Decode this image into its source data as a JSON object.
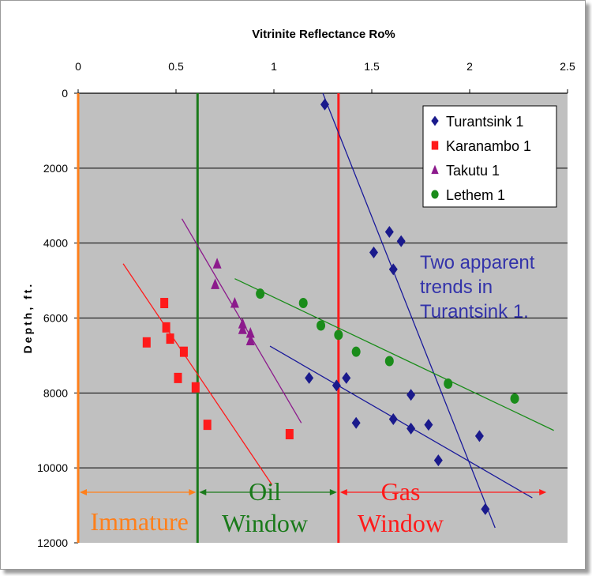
{
  "chart_data": {
    "type": "scatter",
    "title": "Vitrinite Reflectance Ro%",
    "xlabel": "Vitrinite Reflectance Ro%",
    "ylabel": "Depth, ft.",
    "x_axis_position": "top",
    "y_axis_inverted": true,
    "xlim": [
      0,
      2.5
    ],
    "ylim": [
      0,
      12000
    ],
    "x_ticks": [
      0,
      0.5,
      1,
      1.5,
      2,
      2.5
    ],
    "x_tick_labels": [
      "0",
      "0.5",
      "1",
      "1.5",
      "2",
      "2.5"
    ],
    "y_ticks": [
      0,
      2000,
      4000,
      6000,
      8000,
      10000,
      12000
    ],
    "y_tick_labels": [
      "0",
      "2000",
      "4000",
      "6000",
      "8000",
      "10000",
      "12000"
    ],
    "grid": "horizontal",
    "plot_background": "#c0c0c0",
    "legend_position": "top-right",
    "series": [
      {
        "name": "Turantsink 1",
        "marker": "diamond",
        "color": "#1a1a8c",
        "points": [
          [
            1.26,
            300
          ],
          [
            1.59,
            3700
          ],
          [
            1.65,
            3950
          ],
          [
            1.51,
            4250
          ],
          [
            1.61,
            4700
          ],
          [
            1.18,
            7600
          ],
          [
            1.32,
            7800
          ],
          [
            1.37,
            7600
          ],
          [
            1.7,
            8050
          ],
          [
            1.42,
            8800
          ],
          [
            1.61,
            8700
          ],
          [
            1.7,
            8950
          ],
          [
            1.79,
            8850
          ],
          [
            2.05,
            9150
          ],
          [
            1.84,
            9800
          ],
          [
            2.08,
            11100
          ]
        ]
      },
      {
        "name": "Karanambo 1",
        "marker": "square",
        "color": "#ff1a1a",
        "points": [
          [
            0.44,
            5600
          ],
          [
            0.45,
            6250
          ],
          [
            0.47,
            6550
          ],
          [
            0.54,
            6900
          ],
          [
            0.51,
            7600
          ],
          [
            0.6,
            7850
          ],
          [
            0.66,
            8850
          ],
          [
            1.08,
            9100
          ],
          [
            0.35,
            6650
          ]
        ]
      },
      {
        "name": "Takutu 1",
        "marker": "triangle",
        "color": "#8c1a8c",
        "points": [
          [
            0.71,
            4550
          ],
          [
            0.7,
            5100
          ],
          [
            0.8,
            5600
          ],
          [
            0.84,
            6150
          ],
          [
            0.84,
            6300
          ],
          [
            0.88,
            6400
          ],
          [
            0.88,
            6600
          ]
        ]
      },
      {
        "name": "Lethem 1",
        "marker": "circle",
        "color": "#1a8c1a",
        "points": [
          [
            0.93,
            5350
          ],
          [
            1.15,
            5600
          ],
          [
            1.24,
            6200
          ],
          [
            1.33,
            6450
          ],
          [
            1.42,
            6900
          ],
          [
            1.59,
            7150
          ],
          [
            1.89,
            7750
          ],
          [
            2.23,
            8150
          ]
        ]
      }
    ],
    "trend_lines": [
      {
        "color": "#1a1a9a",
        "from": [
          1.25,
          0
        ],
        "to": [
          2.13,
          11600
        ]
      },
      {
        "color": "#1a1a9a",
        "from": [
          0.98,
          6750
        ],
        "to": [
          2.32,
          10800
        ]
      },
      {
        "color": "#ff1a1a",
        "from": [
          0.23,
          4550
        ],
        "to": [
          0.99,
          10450
        ]
      },
      {
        "color": "#8c1a8c",
        "from": [
          0.53,
          3350
        ],
        "to": [
          1.14,
          8800
        ]
      },
      {
        "color": "#1a8c1a",
        "from": [
          0.8,
          4950
        ],
        "to": [
          2.43,
          9000
        ]
      }
    ],
    "zone_lines": [
      {
        "x": 0.0,
        "color": "#ff7f1a"
      },
      {
        "x": 0.61,
        "color": "#1a7a1a"
      },
      {
        "x": 1.33,
        "color": "#ff1a1a"
      }
    ],
    "zones": [
      {
        "label_lines": [
          "Immature"
        ],
        "color": "#ff7f1a",
        "from": 0.0,
        "to": 0.61,
        "arrow_depth": 10650
      },
      {
        "label_lines": [
          "Oil",
          "Window"
        ],
        "color": "#1a7a1a",
        "from": 0.61,
        "to": 1.33,
        "arrow_depth": 10650
      },
      {
        "label_lines": [
          "Gas",
          "Window"
        ],
        "color": "#ff1a1a",
        "from": 1.33,
        "to": 2.4,
        "arrow_depth": 10650
      }
    ],
    "annotations": [
      {
        "lines": [
          "Two apparent",
          "trends in",
          "Turantsink 1."
        ],
        "color": "#3333aa",
        "position": "right of Turantsink 1 upper cluster"
      }
    ]
  }
}
